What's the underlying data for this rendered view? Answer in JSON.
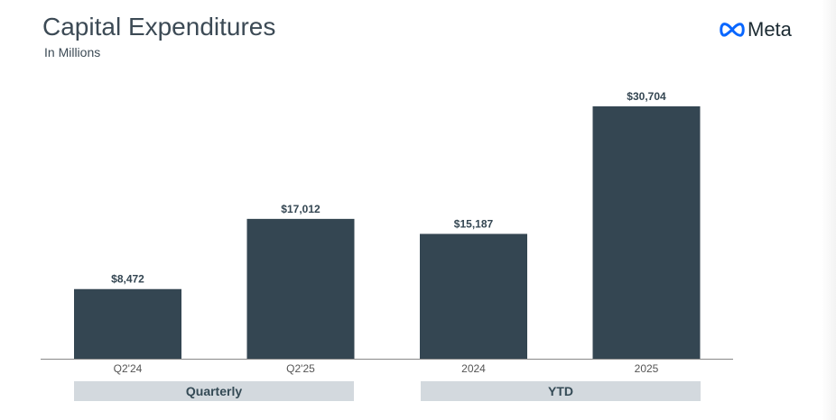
{
  "chart_data": {
    "type": "bar",
    "title": "Capital Expenditures",
    "subtitle": "In Millions",
    "categories": [
      "Q2'24",
      "Q2'25",
      "2024",
      "2025"
    ],
    "values": [
      8472,
      17012,
      15187,
      30704
    ],
    "data_labels": [
      "$8,472",
      "$17,012",
      "$15,187",
      "$30,704"
    ],
    "groups": [
      {
        "label": "Quarterly",
        "categories": [
          "Q2'24",
          "Q2'25"
        ]
      },
      {
        "label": "YTD",
        "categories": [
          "2024",
          "2025"
        ]
      }
    ],
    "xlabel": "",
    "ylabel": "",
    "ylim": [
      0,
      30704
    ],
    "grid": false,
    "bar_color": "#344652"
  },
  "brand": {
    "name": "Meta",
    "color": "#0866ff"
  }
}
